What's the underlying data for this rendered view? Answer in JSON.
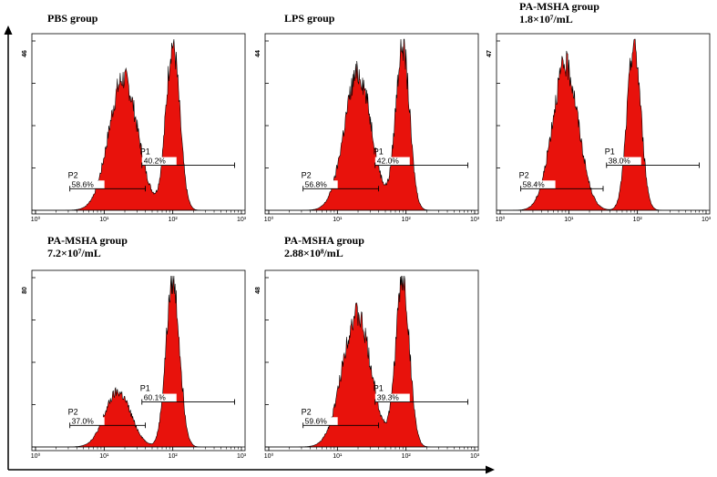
{
  "figure": {
    "axis_color": "#000000",
    "fill_color": "#e8120c",
    "frame_color": "#000000"
  },
  "chart_data": [
    {
      "type": "area",
      "panel": "pbs",
      "title": [
        "PBS group"
      ],
      "y_max_label": "46",
      "x_scale": "log",
      "xlim": [
        1,
        1000
      ],
      "x_tick_labels": [
        "10⁰",
        "10¹",
        "10²",
        "10³"
      ],
      "peaks": [
        {
          "center_log": 1.28,
          "width": 0.21,
          "height": 0.77
        },
        {
          "center_log": 2.0,
          "width": 0.1,
          "height": 0.97
        }
      ],
      "gates": [
        {
          "name": "P1",
          "percent": "40.2%",
          "range_log": [
            1.55,
            2.9
          ]
        },
        {
          "name": "P2",
          "percent": "58.6%",
          "range_log": [
            0.5,
            1.6
          ]
        }
      ]
    },
    {
      "type": "area",
      "panel": "lps",
      "title": [
        "LPS group"
      ],
      "y_max_label": "44",
      "x_scale": "log",
      "xlim": [
        1,
        1000
      ],
      "x_tick_labels": [
        "10⁰",
        "10¹",
        "10²",
        "10³"
      ],
      "peaks": [
        {
          "center_log": 1.3,
          "width": 0.2,
          "height": 0.8
        },
        {
          "center_log": 1.95,
          "width": 0.1,
          "height": 0.97
        }
      ],
      "gates": [
        {
          "name": "P1",
          "percent": "42.0%",
          "range_log": [
            1.55,
            2.9
          ]
        },
        {
          "name": "P2",
          "percent": "56.8%",
          "range_log": [
            0.5,
            1.6
          ]
        }
      ]
    },
    {
      "type": "area",
      "panel": "pa1",
      "title": [
        "PA-MSHA group",
        "1.8×10⁷/mL"
      ],
      "y_max_label": "47",
      "x_scale": "log",
      "xlim": [
        1,
        1000
      ],
      "x_tick_labels": [
        "10⁰",
        "10¹",
        "10²",
        "10³"
      ],
      "peaks": [
        {
          "center_log": 0.95,
          "width": 0.19,
          "height": 0.85
        },
        {
          "center_log": 1.95,
          "width": 0.1,
          "height": 0.97
        }
      ],
      "gates": [
        {
          "name": "P1",
          "percent": "38.0%",
          "range_log": [
            1.55,
            2.9
          ]
        },
        {
          "name": "P2",
          "percent": "58.4%",
          "range_log": [
            0.3,
            1.5
          ]
        }
      ]
    },
    {
      "type": "area",
      "panel": "pa2",
      "title": [
        "PA-MSHA group",
        "7.2×10⁷/mL"
      ],
      "y_max_label": "80",
      "x_scale": "log",
      "xlim": [
        1,
        1000
      ],
      "x_tick_labels": [
        "10⁰",
        "10¹",
        "10²",
        "10³"
      ],
      "peaks": [
        {
          "center_log": 1.2,
          "width": 0.19,
          "height": 0.32
        },
        {
          "center_log": 2.0,
          "width": 0.1,
          "height": 0.97
        }
      ],
      "gates": [
        {
          "name": "P1",
          "percent": "60.1%",
          "range_log": [
            1.55,
            2.9
          ]
        },
        {
          "name": "P2",
          "percent": "37.0%",
          "range_log": [
            0.5,
            1.6
          ]
        }
      ]
    },
    {
      "type": "area",
      "panel": "pa3",
      "title": [
        "PA-MSHA group",
        "2.88×10⁸/mL"
      ],
      "y_max_label": "48",
      "x_scale": "log",
      "xlim": [
        1,
        1000
      ],
      "x_tick_labels": [
        "10⁰",
        "10¹",
        "10²",
        "10³"
      ],
      "peaks": [
        {
          "center_log": 1.28,
          "width": 0.21,
          "height": 0.77
        },
        {
          "center_log": 1.95,
          "width": 0.1,
          "height": 0.97
        }
      ],
      "gates": [
        {
          "name": "P1",
          "percent": "39.3%",
          "range_log": [
            1.55,
            2.9
          ]
        },
        {
          "name": "P2",
          "percent": "59.6%",
          "range_log": [
            0.5,
            1.6
          ]
        }
      ]
    }
  ]
}
